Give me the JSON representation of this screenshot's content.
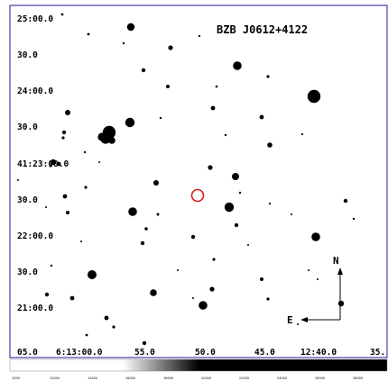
{
  "finding_chart": {
    "title": "BZB J0612+4122",
    "ra_labels": [
      "05.0",
      "6:13:00.0",
      "55.0",
      "50.0",
      "45.0",
      "12:40.0",
      "35."
    ],
    "dec_labels": [
      "25:00.0",
      "30.0",
      "24:00.0",
      "30.0",
      "41:23:00.0",
      "30.0",
      "22:00.0",
      "30.0",
      "21:00.0"
    ],
    "compass": {
      "north": "N",
      "east": "E"
    },
    "target_marker_color": "#d81e1e",
    "frame_color": "#1a1a9e",
    "colorbar_ticks": [
      "1000",
      "12000",
      "14000",
      "16000",
      "18000",
      "20000",
      "22000",
      "24000",
      "26000",
      "28000"
    ]
  }
}
